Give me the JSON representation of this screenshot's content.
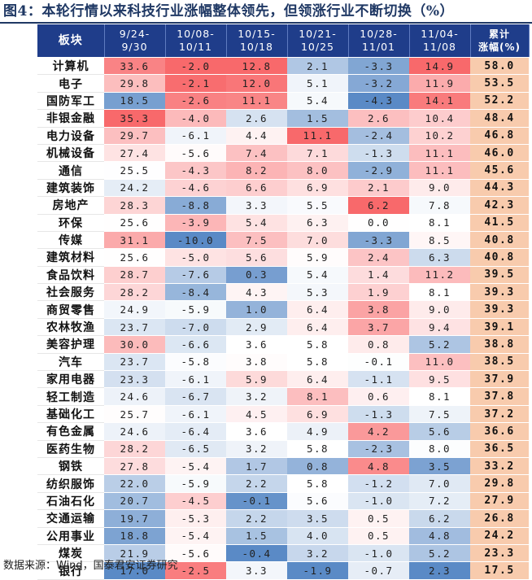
{
  "title": "图4：本轮行情以来科技行业涨幅整体领先，但领涨行业不断切换（%）",
  "source": "数据来源：Wind，国泰君安证券研究",
  "columns": [
    {
      "line1": "板块",
      "line2": ""
    },
    {
      "line1": "9/24-",
      "line2": "9/30"
    },
    {
      "line1": "10/08-",
      "line2": "10/11"
    },
    {
      "line1": "10/15-",
      "line2": "10/18"
    },
    {
      "line1": "10/21-",
      "line2": "10/25"
    },
    {
      "line1": "10/28-",
      "line2": "11/01"
    },
    {
      "line1": "11/04-",
      "line2": "11/08"
    },
    {
      "line1": "累计",
      "line2": "涨幅(%)"
    }
  ],
  "rows": [
    {
      "sector": "计算机",
      "v": [
        "33.6",
        "-2.0",
        "12.8",
        "2.1",
        "-3.3",
        "14.9"
      ],
      "cum": "58.0"
    },
    {
      "sector": "电子",
      "v": [
        "29.8",
        "-2.1",
        "12.0",
        "5.1",
        "-3.2",
        "11.9"
      ],
      "cum": "53.5"
    },
    {
      "sector": "国防军工",
      "v": [
        "18.5",
        "-2.6",
        "11.1",
        "5.4",
        "-4.3",
        "14.1"
      ],
      "cum": "52.2"
    },
    {
      "sector": "非银金融",
      "v": [
        "35.3",
        "-4.0",
        "2.6",
        "1.5",
        "2.6",
        "10.4"
      ],
      "cum": "48.4"
    },
    {
      "sector": "电力设备",
      "v": [
        "29.7",
        "-6.1",
        "4.4",
        "11.1",
        "-2.4",
        "10.2"
      ],
      "cum": "46.8"
    },
    {
      "sector": "机械设备",
      "v": [
        "27.4",
        "-5.6",
        "7.4",
        "7.1",
        "-1.3",
        "11.1"
      ],
      "cum": "46.0"
    },
    {
      "sector": "通信",
      "v": [
        "25.5",
        "-4.3",
        "8.2",
        "8.0",
        "-2.9",
        "11.1"
      ],
      "cum": "45.6"
    },
    {
      "sector": "建筑装饰",
      "v": [
        "24.2",
        "-4.6",
        "6.6",
        "6.9",
        "2.1",
        "9.0"
      ],
      "cum": "44.3"
    },
    {
      "sector": "房地产",
      "v": [
        "28.3",
        "-8.8",
        "3.3",
        "5.5",
        "6.2",
        "7.8"
      ],
      "cum": "42.3"
    },
    {
      "sector": "环保",
      "v": [
        "25.6",
        "-3.9",
        "5.4",
        "6.3",
        "0.0",
        "8.1"
      ],
      "cum": "41.5"
    },
    {
      "sector": "传媒",
      "v": [
        "31.1",
        "-10.0",
        "7.5",
        "7.0",
        "-3.3",
        "8.5"
      ],
      "cum": "40.8"
    },
    {
      "sector": "建筑材料",
      "v": [
        "25.6",
        "-5.0",
        "5.6",
        "5.9",
        "2.4",
        "6.3"
      ],
      "cum": "40.8"
    },
    {
      "sector": "食品饮料",
      "v": [
        "28.7",
        "-7.6",
        "0.3",
        "5.4",
        "1.4",
        "11.2"
      ],
      "cum": "39.5"
    },
    {
      "sector": "社会服务",
      "v": [
        "28.2",
        "-8.4",
        "4.3",
        "5.3",
        "1.9",
        "8.1"
      ],
      "cum": "39.3"
    },
    {
      "sector": "商贸零售",
      "v": [
        "24.9",
        "-5.9",
        "1.0",
        "6.4",
        "3.8",
        "9.0"
      ],
      "cum": "39.3"
    },
    {
      "sector": "农林牧渔",
      "v": [
        "23.7",
        "-7.0",
        "2.9",
        "6.4",
        "3.7",
        "9.4"
      ],
      "cum": "39.1"
    },
    {
      "sector": "美容护理",
      "v": [
        "30.0",
        "-6.6",
        "3.6",
        "5.8",
        "0.8",
        "5.2"
      ],
      "cum": "38.8"
    },
    {
      "sector": "汽车",
      "v": [
        "23.7",
        "-5.8",
        "3.8",
        "5.8",
        "-0.1",
        "11.0"
      ],
      "cum": "38.5"
    },
    {
      "sector": "家用电器",
      "v": [
        "23.3",
        "-6.1",
        "5.9",
        "6.4",
        "-1.1",
        "9.5"
      ],
      "cum": "37.9"
    },
    {
      "sector": "轻工制造",
      "v": [
        "24.6",
        "-6.7",
        "3.2",
        "8.1",
        "0.6",
        "8.1"
      ],
      "cum": "37.8"
    },
    {
      "sector": "基础化工",
      "v": [
        "25.7",
        "-6.1",
        "4.5",
        "6.9",
        "-1.3",
        "7.5"
      ],
      "cum": "37.2"
    },
    {
      "sector": "有色金属",
      "v": [
        "24.6",
        "-6.4",
        "3.6",
        "4.9",
        "4.2",
        "5.6"
      ],
      "cum": "36.6"
    },
    {
      "sector": "医药生物",
      "v": [
        "28.2",
        "-6.5",
        "3.2",
        "5.8",
        "-2.3",
        "8.0"
      ],
      "cum": "36.5"
    },
    {
      "sector": "钢铁",
      "v": [
        "27.8",
        "-5.4",
        "1.7",
        "0.8",
        "4.8",
        "3.5"
      ],
      "cum": "33.2"
    },
    {
      "sector": "纺织服饰",
      "v": [
        "22.0",
        "-5.9",
        "2.2",
        "5.8",
        "-1.2",
        "7.0"
      ],
      "cum": "29.8"
    },
    {
      "sector": "石油石化",
      "v": [
        "20.7",
        "-4.5",
        "-0.1",
        "5.6",
        "-1.0",
        "7.2"
      ],
      "cum": "27.9"
    },
    {
      "sector": "交通运输",
      "v": [
        "19.7",
        "-5.3",
        "2.2",
        "3.5",
        "0.5",
        "6.2"
      ],
      "cum": "26.8"
    },
    {
      "sector": "公用事业",
      "v": [
        "18.8",
        "-5.4",
        "1.5",
        "4.0",
        "0.5",
        "4.8"
      ],
      "cum": "24.2"
    },
    {
      "sector": "煤炭",
      "v": [
        "21.9",
        "-5.6",
        "-0.4",
        "3.2",
        "-1.0",
        "5.2"
      ],
      "cum": "23.3"
    },
    {
      "sector": "银行",
      "v": [
        "17.0",
        "-2.5",
        "3.3",
        "-1.9",
        "-0.7",
        "2.3"
      ],
      "cum": "17.5"
    }
  ]
}
